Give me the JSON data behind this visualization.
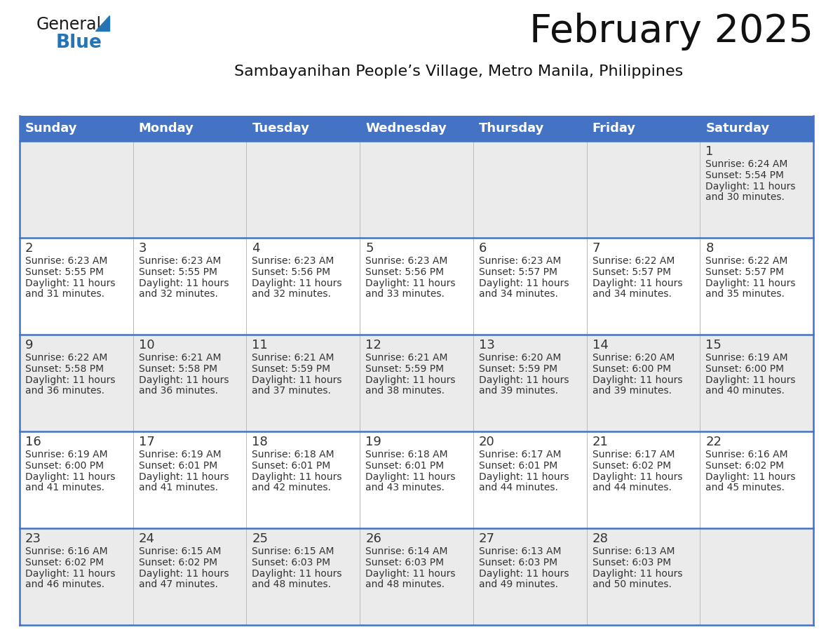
{
  "title": "February 2025",
  "subtitle": "Sambayanihan People’s Village, Metro Manila, Philippines",
  "header_bg": "#4472C4",
  "header_text": "#FFFFFF",
  "cell_bg_odd": "#EBEBEB",
  "cell_bg_even": "#FFFFFF",
  "grid_line_color": "#4472C4",
  "text_color": "#333333",
  "day_headers": [
    "Sunday",
    "Monday",
    "Tuesday",
    "Wednesday",
    "Thursday",
    "Friday",
    "Saturday"
  ],
  "weeks": [
    [
      {
        "day": null,
        "sunrise": null,
        "sunset": null,
        "daylight": null
      },
      {
        "day": null,
        "sunrise": null,
        "sunset": null,
        "daylight": null
      },
      {
        "day": null,
        "sunrise": null,
        "sunset": null,
        "daylight": null
      },
      {
        "day": null,
        "sunrise": null,
        "sunset": null,
        "daylight": null
      },
      {
        "day": null,
        "sunrise": null,
        "sunset": null,
        "daylight": null
      },
      {
        "day": null,
        "sunrise": null,
        "sunset": null,
        "daylight": null
      },
      {
        "day": 1,
        "sunrise": "6:24 AM",
        "sunset": "5:54 PM",
        "daylight": "11 hours\nand 30 minutes."
      }
    ],
    [
      {
        "day": 2,
        "sunrise": "6:23 AM",
        "sunset": "5:55 PM",
        "daylight": "11 hours\nand 31 minutes."
      },
      {
        "day": 3,
        "sunrise": "6:23 AM",
        "sunset": "5:55 PM",
        "daylight": "11 hours\nand 32 minutes."
      },
      {
        "day": 4,
        "sunrise": "6:23 AM",
        "sunset": "5:56 PM",
        "daylight": "11 hours\nand 32 minutes."
      },
      {
        "day": 5,
        "sunrise": "6:23 AM",
        "sunset": "5:56 PM",
        "daylight": "11 hours\nand 33 minutes."
      },
      {
        "day": 6,
        "sunrise": "6:23 AM",
        "sunset": "5:57 PM",
        "daylight": "11 hours\nand 34 minutes."
      },
      {
        "day": 7,
        "sunrise": "6:22 AM",
        "sunset": "5:57 PM",
        "daylight": "11 hours\nand 34 minutes."
      },
      {
        "day": 8,
        "sunrise": "6:22 AM",
        "sunset": "5:57 PM",
        "daylight": "11 hours\nand 35 minutes."
      }
    ],
    [
      {
        "day": 9,
        "sunrise": "6:22 AM",
        "sunset": "5:58 PM",
        "daylight": "11 hours\nand 36 minutes."
      },
      {
        "day": 10,
        "sunrise": "6:21 AM",
        "sunset": "5:58 PM",
        "daylight": "11 hours\nand 36 minutes."
      },
      {
        "day": 11,
        "sunrise": "6:21 AM",
        "sunset": "5:59 PM",
        "daylight": "11 hours\nand 37 minutes."
      },
      {
        "day": 12,
        "sunrise": "6:21 AM",
        "sunset": "5:59 PM",
        "daylight": "11 hours\nand 38 minutes."
      },
      {
        "day": 13,
        "sunrise": "6:20 AM",
        "sunset": "5:59 PM",
        "daylight": "11 hours\nand 39 minutes."
      },
      {
        "day": 14,
        "sunrise": "6:20 AM",
        "sunset": "6:00 PM",
        "daylight": "11 hours\nand 39 minutes."
      },
      {
        "day": 15,
        "sunrise": "6:19 AM",
        "sunset": "6:00 PM",
        "daylight": "11 hours\nand 40 minutes."
      }
    ],
    [
      {
        "day": 16,
        "sunrise": "6:19 AM",
        "sunset": "6:00 PM",
        "daylight": "11 hours\nand 41 minutes."
      },
      {
        "day": 17,
        "sunrise": "6:19 AM",
        "sunset": "6:01 PM",
        "daylight": "11 hours\nand 41 minutes."
      },
      {
        "day": 18,
        "sunrise": "6:18 AM",
        "sunset": "6:01 PM",
        "daylight": "11 hours\nand 42 minutes."
      },
      {
        "day": 19,
        "sunrise": "6:18 AM",
        "sunset": "6:01 PM",
        "daylight": "11 hours\nand 43 minutes."
      },
      {
        "day": 20,
        "sunrise": "6:17 AM",
        "sunset": "6:01 PM",
        "daylight": "11 hours\nand 44 minutes."
      },
      {
        "day": 21,
        "sunrise": "6:17 AM",
        "sunset": "6:02 PM",
        "daylight": "11 hours\nand 44 minutes."
      },
      {
        "day": 22,
        "sunrise": "6:16 AM",
        "sunset": "6:02 PM",
        "daylight": "11 hours\nand 45 minutes."
      }
    ],
    [
      {
        "day": 23,
        "sunrise": "6:16 AM",
        "sunset": "6:02 PM",
        "daylight": "11 hours\nand 46 minutes."
      },
      {
        "day": 24,
        "sunrise": "6:15 AM",
        "sunset": "6:02 PM",
        "daylight": "11 hours\nand 47 minutes."
      },
      {
        "day": 25,
        "sunrise": "6:15 AM",
        "sunset": "6:03 PM",
        "daylight": "11 hours\nand 48 minutes."
      },
      {
        "day": 26,
        "sunrise": "6:14 AM",
        "sunset": "6:03 PM",
        "daylight": "11 hours\nand 48 minutes."
      },
      {
        "day": 27,
        "sunrise": "6:13 AM",
        "sunset": "6:03 PM",
        "daylight": "11 hours\nand 49 minutes."
      },
      {
        "day": 28,
        "sunrise": "6:13 AM",
        "sunset": "6:03 PM",
        "daylight": "11 hours\nand 50 minutes."
      },
      {
        "day": null,
        "sunrise": null,
        "sunset": null,
        "daylight": null
      }
    ]
  ],
  "logo_color_general": "#1a1a1a",
  "logo_color_blue": "#2575b6",
  "logo_triangle_color": "#2575b6",
  "title_fontsize": 40,
  "subtitle_fontsize": 16,
  "header_fontsize": 13,
  "day_num_fontsize": 13,
  "cell_fontsize": 10
}
